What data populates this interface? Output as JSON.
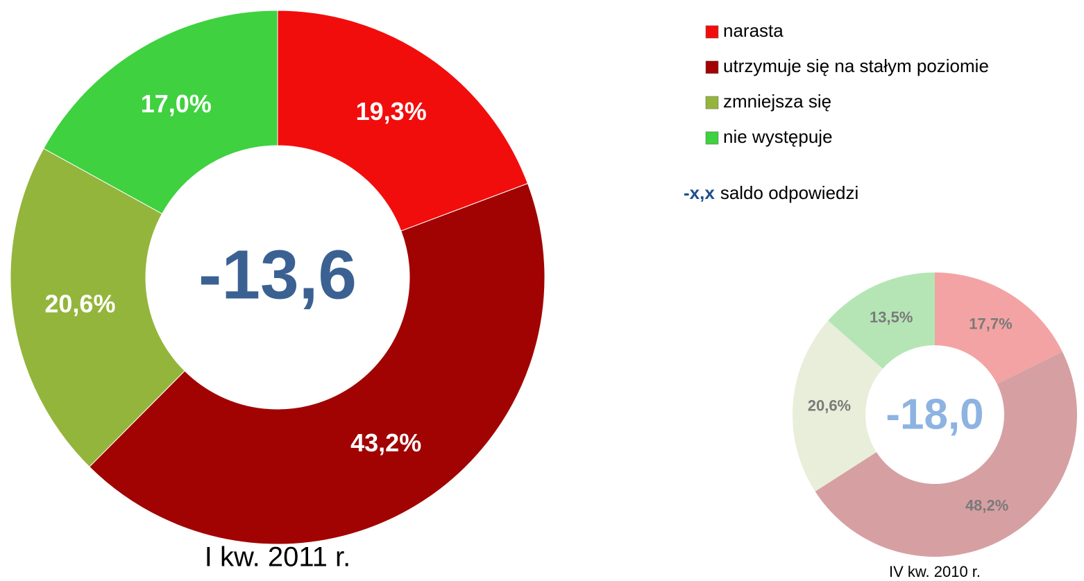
{
  "chart_data": [
    {
      "type": "donut",
      "title": "I kw. 2011 r.",
      "center_label": "-13,6",
      "values": [
        19.3,
        43.2,
        20.6,
        17.0
      ],
      "value_labels": [
        "19,3%",
        "43,2%",
        "20,6%",
        "17,0%"
      ],
      "colors": [
        "#f20d0d",
        "#a10303",
        "#93b53c",
        "#3fd13f"
      ]
    },
    {
      "type": "donut",
      "title": "IV kw. 2010 r.",
      "center_label": "-18,0",
      "values": [
        17.7,
        48.2,
        20.6,
        13.5
      ],
      "value_labels": [
        "17,7%",
        "48,2%",
        "20,6%",
        "13,5%"
      ],
      "colors": [
        "#f3a3a3",
        "#d6a0a3",
        "#e8eed9",
        "#b5e5b5"
      ]
    }
  ],
  "legend": {
    "items": [
      "narasta",
      "utrzymuje się na stałym poziomie",
      "zmniejsza się",
      "nie występuje"
    ],
    "note_symbol": "-x,x",
    "note_text": "saldo odpowiedzi"
  }
}
